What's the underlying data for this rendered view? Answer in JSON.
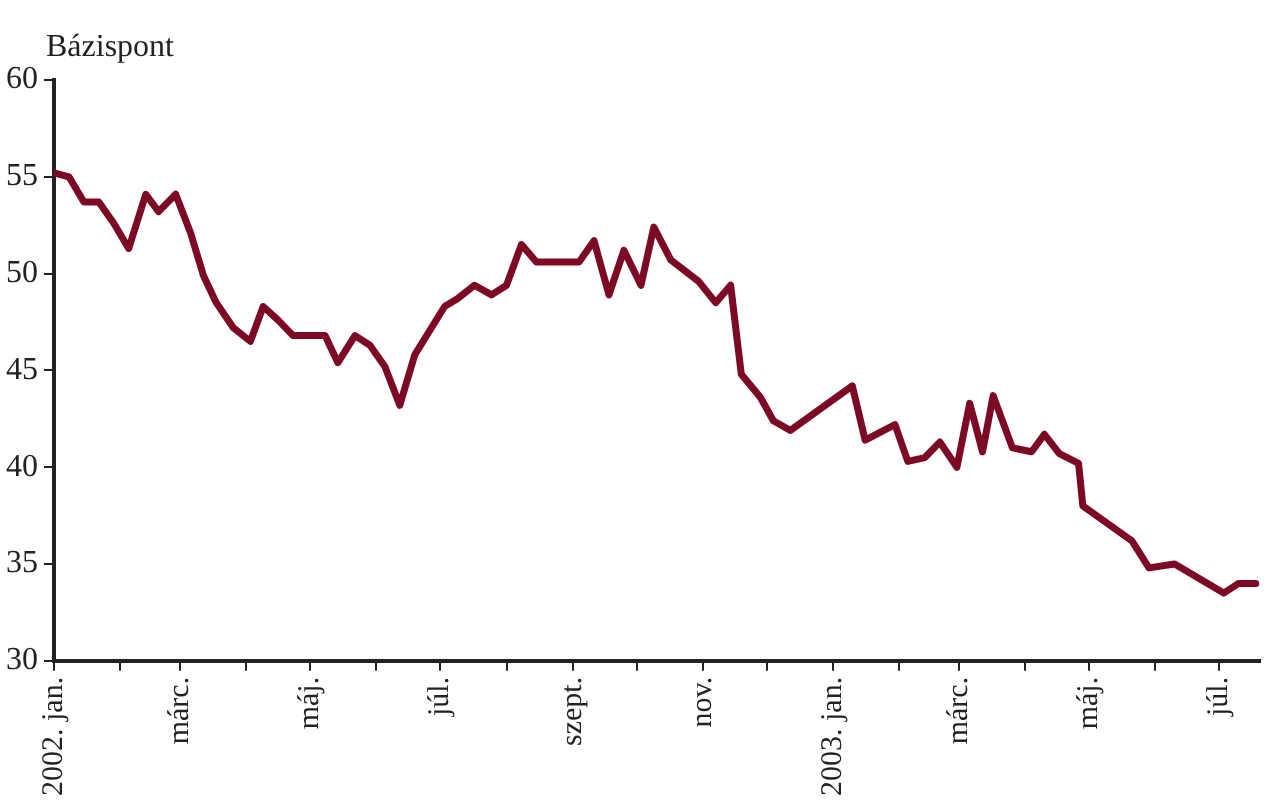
{
  "chart_data": {
    "type": "line",
    "ylabel": "Bázispont",
    "x": [
      "2002-01-01",
      "2002-01-08",
      "2002-01-15",
      "2002-01-22",
      "2002-01-29",
      "2002-02-05",
      "2002-02-13",
      "2002-02-19",
      "2002-02-27",
      "2002-03-06",
      "2002-03-12",
      "2002-03-18",
      "2002-03-26",
      "2002-04-03",
      "2002-04-09",
      "2002-04-16",
      "2002-04-23",
      "2002-05-08",
      "2002-05-14",
      "2002-05-22",
      "2002-05-29",
      "2002-06-05",
      "2002-06-12",
      "2002-06-19",
      "2002-07-03",
      "2002-07-09",
      "2002-07-17",
      "2002-07-25",
      "2002-08-01",
      "2002-08-08",
      "2002-08-15",
      "2002-09-04",
      "2002-09-11",
      "2002-09-18",
      "2002-09-25",
      "2002-10-03",
      "2002-10-09",
      "2002-10-17",
      "2002-10-30",
      "2002-11-07",
      "2002-11-14",
      "2002-11-19",
      "2002-11-28",
      "2002-12-04",
      "2002-12-12",
      "2003-01-10",
      "2003-01-16",
      "2003-01-30",
      "2003-02-05",
      "2003-02-13",
      "2003-02-20",
      "2003-02-28",
      "2003-03-06",
      "2003-03-12",
      "2003-03-17",
      "2003-03-26",
      "2003-04-04",
      "2003-04-10",
      "2003-04-17",
      "2003-04-26",
      "2003-04-28",
      "2003-05-21",
      "2003-05-29",
      "2003-06-10",
      "2003-07-03",
      "2003-07-10",
      "2003-07-18"
    ],
    "series": [
      {
        "color": "#7d0a24",
        "values": [
          55.2,
          55.0,
          53.7,
          53.7,
          52.6,
          51.3,
          54.1,
          53.2,
          54.1,
          52.1,
          49.9,
          48.5,
          47.2,
          46.5,
          48.3,
          47.6,
          46.8,
          46.8,
          45.4,
          46.8,
          46.3,
          45.2,
          43.2,
          45.8,
          48.3,
          48.7,
          49.4,
          48.9,
          49.4,
          51.5,
          50.6,
          50.6,
          51.7,
          48.9,
          51.2,
          49.4,
          52.4,
          50.7,
          49.6,
          48.5,
          49.4,
          44.8,
          43.6,
          42.4,
          41.9,
          44.2,
          41.4,
          42.2,
          40.3,
          40.5,
          41.3,
          40.0,
          43.3,
          40.8,
          43.7,
          41.0,
          40.8,
          41.7,
          40.7,
          40.2,
          38.0,
          36.2,
          34.8,
          35.0,
          33.5,
          34.0,
          34.0
        ]
      }
    ],
    "xlim": [
      "2002-01-01",
      "2003-07-20"
    ],
    "xticks": [
      {
        "value": "2002-01-01",
        "label": "2002. jan."
      },
      {
        "value": "2002-02-01",
        "label": null
      },
      {
        "value": "2002-03-01",
        "label": "márc."
      },
      {
        "value": "2002-04-01",
        "label": null
      },
      {
        "value": "2002-05-01",
        "label": "máj."
      },
      {
        "value": "2002-06-01",
        "label": null
      },
      {
        "value": "2002-07-01",
        "label": "júl."
      },
      {
        "value": "2002-08-01",
        "label": null
      },
      {
        "value": "2002-09-01",
        "label": "szept."
      },
      {
        "value": "2002-10-01",
        "label": null
      },
      {
        "value": "2002-11-01",
        "label": "nov."
      },
      {
        "value": "2002-12-01",
        "label": null
      },
      {
        "value": "2003-01-01",
        "label": "2003. jan."
      },
      {
        "value": "2003-02-01",
        "label": null
      },
      {
        "value": "2003-03-01",
        "label": "márc."
      },
      {
        "value": "2003-04-01",
        "label": null
      },
      {
        "value": "2003-05-01",
        "label": "máj."
      },
      {
        "value": "2003-06-01",
        "label": null
      },
      {
        "value": "2003-07-01",
        "label": "júl."
      }
    ],
    "ylim": [
      30,
      60
    ],
    "yticks": [
      30,
      35,
      40,
      45,
      50,
      55,
      60
    ],
    "grid": false,
    "legend": false,
    "marker": "none",
    "line_style": "solid"
  }
}
